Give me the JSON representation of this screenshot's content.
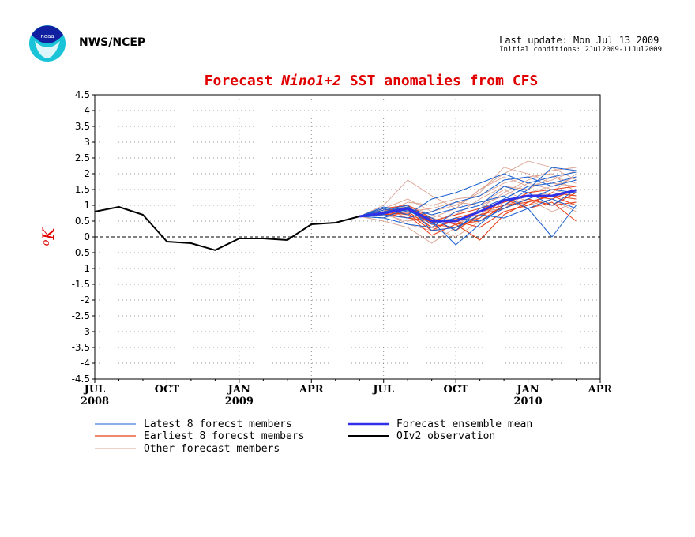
{
  "header": {
    "org": "NWS/NCEP",
    "last_update": "Last update: Mon Jul 13 2009",
    "initial_conditions": "Initial conditions: 2Jul2009-11Jul2009"
  },
  "colors": {
    "title": "#e00000",
    "latest": "#1a5fd1",
    "earliest": "#e8401a",
    "other": "#d9a090",
    "mean": "#3030e8",
    "obs": "#000000"
  },
  "chart_data": {
    "type": "line",
    "title_parts": [
      "Forecast ",
      "Nino1+2",
      " SST anomalies from CFS"
    ],
    "ylabel": "oK",
    "ylim": [
      -4.5,
      4.5
    ],
    "yticks": [
      4.5,
      4,
      3.5,
      3,
      2.5,
      2,
      1.5,
      1,
      0.5,
      0,
      -0.5,
      -1,
      -1.5,
      -2,
      -2.5,
      -3,
      -3.5,
      -4,
      -4.5
    ],
    "ytick_labels": [
      "4.5",
      "4",
      "3.5",
      "3",
      "2.5",
      "2",
      "1.5",
      "1",
      "0.5",
      "0",
      "-0.5",
      "-1",
      "-1.5",
      "-2",
      "-2.5",
      "-3",
      "-3.5",
      "-4",
      "-4.5"
    ],
    "x_range_months": [
      "Jul 2008",
      "Apr 2010"
    ],
    "xticks": [
      {
        "month": "JUL",
        "year": "2008",
        "i": 0
      },
      {
        "month": "OCT",
        "year": "",
        "i": 3
      },
      {
        "month": "JAN",
        "year": "2009",
        "i": 6
      },
      {
        "month": "APR",
        "year": "",
        "i": 9
      },
      {
        "month": "JUL",
        "year": "",
        "i": 12
      },
      {
        "month": "OCT",
        "year": "",
        "i": 15
      },
      {
        "month": "JAN",
        "year": "2010",
        "i": 18
      },
      {
        "month": "APR",
        "year": "",
        "i": 21
      }
    ],
    "grid": true,
    "observation": {
      "name": "OIv2 observation",
      "months": [
        "Jul 2008",
        "Aug 2008",
        "Sep 2008",
        "Oct 2008",
        "Nov 2008",
        "Dec 2008",
        "Jan 2009",
        "Feb 2009",
        "Mar 2009",
        "Apr 2009",
        "May 2009",
        "Jun 2009"
      ],
      "values": [
        0.8,
        0.95,
        0.7,
        -0.15,
        -0.2,
        -0.42,
        -0.05,
        -0.05,
        -0.1,
        0.4,
        0.45,
        0.65
      ]
    },
    "ensemble_mean": {
      "name": "Forecast ensemble mean",
      "months": [
        "Jun 2009",
        "Jul 2009",
        "Aug 2009",
        "Sep 2009",
        "Oct 2009",
        "Nov 2009",
        "Dec 2009",
        "Jan 2010",
        "Feb 2010",
        "Mar 2010"
      ],
      "values": [
        0.65,
        0.75,
        0.9,
        0.5,
        0.5,
        0.8,
        1.15,
        1.3,
        1.3,
        1.48
      ]
    },
    "members": {
      "months": [
        "Jun 2009",
        "Jul 2009",
        "Aug 2009",
        "Sep 2009",
        "Oct 2009",
        "Nov 2009",
        "Dec 2009",
        "Jan 2010",
        "Feb 2010",
        "Mar 2010"
      ],
      "latest": [
        [
          0.65,
          0.8,
          0.95,
          0.5,
          -0.25,
          0.4,
          1.0,
          1.5,
          2.2,
          2.1
        ],
        [
          0.65,
          0.9,
          0.7,
          1.2,
          1.4,
          1.7,
          2.0,
          1.7,
          1.9,
          2.05
        ],
        [
          0.65,
          0.6,
          0.4,
          0.3,
          0.8,
          1.0,
          1.6,
          1.4,
          1.0,
          1.5
        ],
        [
          0.65,
          0.85,
          1.0,
          0.2,
          0.3,
          0.7,
          0.6,
          0.9,
          0.0,
          1.0
        ],
        [
          0.65,
          0.7,
          0.6,
          0.8,
          1.1,
          1.3,
          1.8,
          1.9,
          1.6,
          1.8
        ],
        [
          0.65,
          0.75,
          0.85,
          0.4,
          0.6,
          0.5,
          0.9,
          1.2,
          1.5,
          1.4
        ],
        [
          0.65,
          0.95,
          0.8,
          0.6,
          0.2,
          0.9,
          1.2,
          1.6,
          1.7,
          1.9
        ],
        [
          0.65,
          0.6,
          0.9,
          0.7,
          0.9,
          1.1,
          1.3,
          0.9,
          1.2,
          0.9
        ]
      ],
      "earliest": [
        [
          0.65,
          0.8,
          0.7,
          0.05,
          0.4,
          0.5,
          1.0,
          1.1,
          1.3,
          1.2
        ],
        [
          0.65,
          0.9,
          1.0,
          0.6,
          0.2,
          0.7,
          0.9,
          1.2,
          1.0,
          1.1
        ],
        [
          0.65,
          0.7,
          0.8,
          0.3,
          0.5,
          0.3,
          0.8,
          1.0,
          1.4,
          1.3
        ],
        [
          0.65,
          0.75,
          0.6,
          0.5,
          0.7,
          0.9,
          1.1,
          1.3,
          1.2,
          1.5
        ],
        [
          0.65,
          0.85,
          0.9,
          0.4,
          0.3,
          0.6,
          1.2,
          0.9,
          1.1,
          0.5
        ],
        [
          0.65,
          0.7,
          0.75,
          0.2,
          0.6,
          0.8,
          1.0,
          1.4,
          1.5,
          1.6
        ],
        [
          0.65,
          0.8,
          0.95,
          0.55,
          0.4,
          -0.1,
          0.7,
          1.1,
          1.3,
          1.0
        ],
        [
          0.65,
          0.75,
          0.85,
          0.45,
          0.55,
          0.7,
          0.9,
          1.2,
          1.0,
          1.4
        ]
      ],
      "other": [
        [
          0.65,
          1.0,
          1.8,
          1.3,
          0.9,
          1.5,
          2.0,
          2.4,
          2.2,
          1.8
        ],
        [
          0.65,
          0.5,
          0.3,
          -0.2,
          0.3,
          0.9,
          1.4,
          1.8,
          2.1,
          2.2
        ],
        [
          0.65,
          0.9,
          1.2,
          0.8,
          1.0,
          1.4,
          2.2,
          2.0,
          1.7,
          1.6
        ],
        [
          0.65,
          0.7,
          0.5,
          0.6,
          0.4,
          0.8,
          0.9,
          1.4,
          1.6,
          1.9
        ],
        [
          0.65,
          0.8,
          0.9,
          0.3,
          0.0,
          0.5,
          1.0,
          1.2,
          0.8,
          1.1
        ],
        [
          0.65,
          0.6,
          0.8,
          0.9,
          1.1,
          1.0,
          1.5,
          1.1,
          1.3,
          1.5
        ],
        [
          0.65,
          0.85,
          0.7,
          0.5,
          0.7,
          1.2,
          1.6,
          1.5,
          1.9,
          1.7
        ],
        [
          0.65,
          0.75,
          1.0,
          0.7,
          0.5,
          0.6,
          1.1,
          1.3,
          1.4,
          2.0
        ],
        [
          0.65,
          0.9,
          0.6,
          0.4,
          0.8,
          1.0,
          1.3,
          1.7,
          1.5,
          1.3
        ],
        [
          0.65,
          0.7,
          1.1,
          1.0,
          1.2,
          1.3,
          1.7,
          1.9,
          2.0,
          1.4
        ],
        [
          0.65,
          0.8,
          0.4,
          0.2,
          0.3,
          0.7,
          1.2,
          1.0,
          1.2,
          0.8
        ],
        [
          0.65,
          0.6,
          0.9,
          0.6,
          0.9,
          1.5,
          1.9,
          1.6,
          1.8,
          2.1
        ]
      ]
    },
    "legend": [
      {
        "label": "Latest 8 forecst members",
        "kind": "latest"
      },
      {
        "label": "Earliest 8 forecst members",
        "kind": "earliest"
      },
      {
        "label": "Other forecast members",
        "kind": "other"
      },
      {
        "label": "Forecast ensemble mean",
        "kind": "mean"
      },
      {
        "label": "OIv2 observation",
        "kind": "obs"
      }
    ],
    "legend_placement": "below"
  }
}
